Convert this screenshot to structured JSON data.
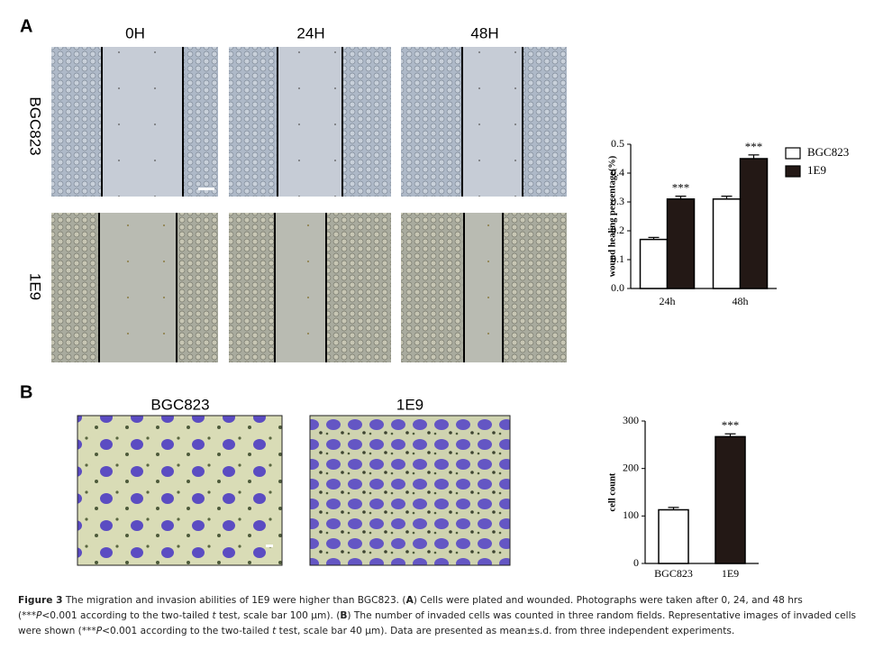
{
  "panel_labels": [
    "A",
    "B"
  ],
  "figure_a": {
    "columns": [
      "0H",
      "24H",
      "48H"
    ],
    "rows": [
      "BGC823",
      "1E9"
    ]
  },
  "figure_b": {
    "columns": [
      "BGC823",
      "1E9"
    ]
  },
  "chart_data": [
    {
      "type": "grouped_bar",
      "y_label": "wound healing percentage(%)",
      "categories": [
        "24h",
        "48h"
      ],
      "series": [
        {
          "name": "BGC823",
          "color": "#ffffff",
          "values": [
            0.17,
            0.31
          ],
          "errors": [
            0.007,
            0.01
          ],
          "significance": [
            null,
            null
          ]
        },
        {
          "name": "1E9",
          "color": "#231815",
          "values": [
            0.31,
            0.45
          ],
          "errors": [
            0.01,
            0.013
          ],
          "significance": [
            "***",
            "***"
          ]
        }
      ],
      "ylim": [
        0,
        0.5
      ],
      "yticks": [
        {
          "value": 0,
          "label": "0.0"
        },
        0.1,
        0.2,
        0.3,
        0.4,
        0.5
      ],
      "legend": "right",
      "grid": false
    },
    {
      "type": "bar",
      "y_label": "cell count",
      "categories": [
        "BGC823",
        "1E9"
      ],
      "values": [
        113,
        267
      ],
      "errors": [
        5,
        6
      ],
      "colors": [
        "#ffffff",
        "#231815"
      ],
      "significance": [
        null,
        "***"
      ],
      "ylim": [
        0,
        300
      ],
      "yticks": [
        0,
        100,
        200,
        300
      ],
      "grid": false
    }
  ],
  "caption": [
    "Figure 3",
    " The migration and invasion abilities of 1E9 were higher than BGC823. (",
    "A",
    ") Cells were plated and wounded. Photographs were taken after 0, 24, and 48 hrs (***",
    "P",
    "<0.001 according to the two-tailed ",
    "t",
    " test, scale bar 100 μm). (",
    "B",
    ") The number of invaded cells was counted in three random fields. Representative images of invaded cells were shown (***",
    "P",
    "<0.001 according to the two-tailed ",
    "t",
    " test, scale bar 40 μm). Data are presented as mean±s.d. from three independent experiments."
  ]
}
